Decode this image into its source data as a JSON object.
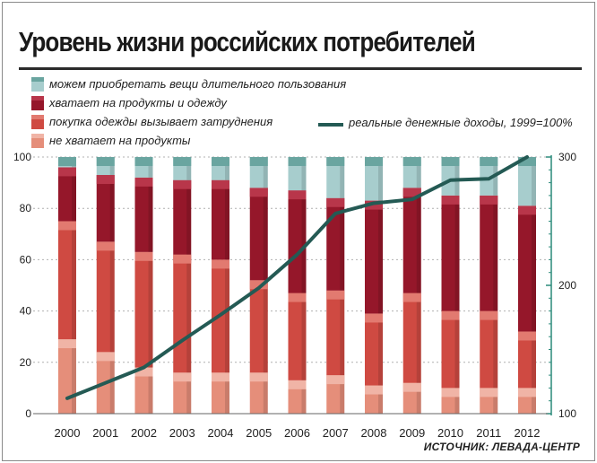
{
  "chart_data": {
    "type": "bar",
    "title": "Уровень жизни российских потребителей",
    "source": "ИСТОЧНИК: ЛЕВАДА-ЦЕНТР",
    "categories": [
      "2000",
      "2001",
      "2002",
      "2003",
      "2004",
      "2005",
      "2006",
      "2007",
      "2008",
      "2009",
      "2010",
      "2011",
      "2012"
    ],
    "ylim": [
      0,
      100
    ],
    "yticks": [
      "0",
      "20",
      "40",
      "60",
      "80",
      "100"
    ],
    "y2lim": [
      100,
      300
    ],
    "y2ticks": [
      "100",
      "200",
      "300"
    ],
    "stacked": true,
    "series": [
      {
        "name": "не хватает на продукты",
        "color": "#e58e7a",
        "topColor": "#f0b4a6",
        "values": [
          29,
          24,
          18,
          16,
          16,
          16,
          13,
          15,
          11,
          12,
          10,
          10,
          10
        ]
      },
      {
        "name": "покупка одежды вызывает затруднения",
        "color": "#cf4a42",
        "topColor": "#e27a70",
        "values": [
          46,
          43,
          45,
          46,
          44,
          36,
          34,
          33,
          28,
          35,
          30,
          30,
          22
        ]
      },
      {
        "name": "хватает на продукты и одежду",
        "color": "#95172a",
        "topColor": "#b8364a",
        "values": [
          21,
          26,
          29,
          29,
          31,
          36,
          40,
          36,
          44,
          41,
          45,
          45,
          49
        ]
      },
      {
        "name": "можем приобретать вещи длительного пользования",
        "color": "#a7cdcd",
        "topColor": "#6aa5a0",
        "values": [
          4,
          7,
          8,
          9,
          9,
          12,
          13,
          16,
          17,
          12,
          15,
          15,
          19
        ]
      }
    ],
    "line": {
      "name": "реальные денежные доходы, 1999=100%",
      "color": "#245a54",
      "values": [
        112,
        124,
        136,
        157,
        177,
        198,
        224,
        256,
        264,
        267,
        282,
        283,
        300
      ]
    }
  }
}
